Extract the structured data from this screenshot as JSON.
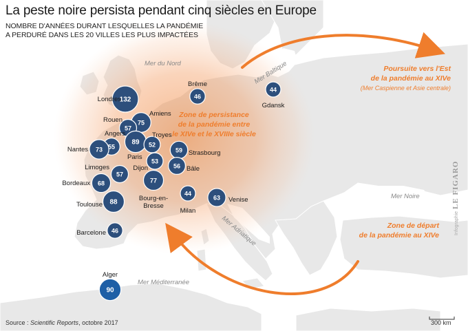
{
  "header": {
    "title": "La peste noire persista pendant cinq siècles en Europe",
    "subtitle_line1": "Nombre d'années durant lesquelles la pandémie",
    "subtitle_line2": "a perduré dans les 20 villes les plus impactées"
  },
  "seas": {
    "nord": "Mer du Nord",
    "baltique": "Mer Baltique",
    "adriatique": "Mer Adriatique",
    "noire": "Mer Noire",
    "mediterranee": "Mer Méditerranée"
  },
  "annotations": {
    "persistance_line1": "Zone de persistance",
    "persistance_line2": "de la pandémie entre",
    "persistance_line3": "le XIVe et le XVIIIe siècle",
    "depart_line1": "Zone de départ",
    "depart_line2": "de la pandémie au XIVe",
    "est_line1": "Poursuite vers l'Est",
    "est_line2": "de la pandémie au XIVe",
    "est_line3": "(Mer Caspienne et Asie centrale)"
  },
  "cities": [
    {
      "name": "Londres",
      "years": 132
    },
    {
      "name": "Brême",
      "years": 46
    },
    {
      "name": "Gdansk",
      "years": 44
    },
    {
      "name": "Amiens",
      "years": 75
    },
    {
      "name": "Rouen",
      "years": 57
    },
    {
      "name": "Paris",
      "years": 89
    },
    {
      "name": "Troyes",
      "years": 52
    },
    {
      "name": "Angers",
      "years": 55
    },
    {
      "name": "Nantes",
      "years": 73
    },
    {
      "name": "Strasbourg",
      "years": 59
    },
    {
      "name": "Bâle",
      "years": 56
    },
    {
      "name": "Dijon",
      "years": 53
    },
    {
      "name": "Limoges",
      "years": 57
    },
    {
      "name": "Bordeaux",
      "years": 68
    },
    {
      "name": "Bourg-en-Bresse",
      "years": 77
    },
    {
      "name": "Milan",
      "years": 44
    },
    {
      "name": "Venise",
      "years": 63
    },
    {
      "name": "Toulouse",
      "years": 88
    },
    {
      "name": "Barcelone",
      "years": 46
    },
    {
      "name": "Alger",
      "years": 90
    }
  ],
  "footer": {
    "source_prefix": "Source : ",
    "source_name": "Scientific Reports",
    "source_date": ", octobre 2017",
    "credit_small": "Infographie",
    "credit_brand": "LE FIGARO",
    "scale": "300 km"
  },
  "colors": {
    "land": "#e9e9e9",
    "sea": "#ffffff",
    "heat": "#f39455",
    "accent": "#ef7d2c",
    "bubble": "#2d4f7c",
    "bubble_alger": "#1e5fa6",
    "bubble_stroke": "#ffffff"
  }
}
